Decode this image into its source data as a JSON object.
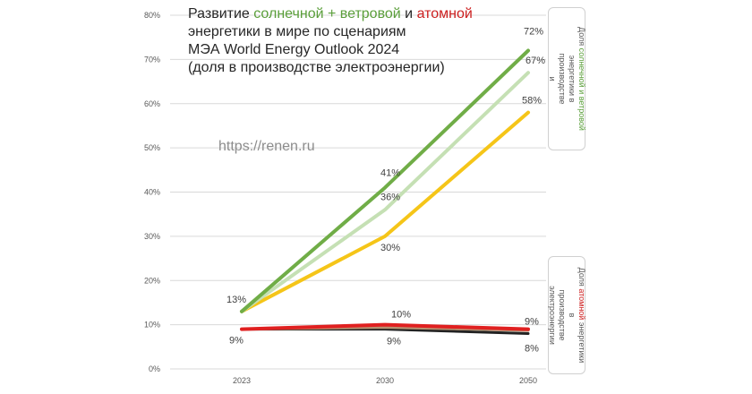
{
  "title": {
    "part1": "Развитие ",
    "green": "солнечной + ветровой",
    "part2": " и ",
    "red": "атомной",
    "line2": "энергетики в мире по сценариям",
    "line3": "МЭА World Energy Outlook 2024",
    "line4": "(доля в производстве электроэнергии)"
  },
  "watermark": "https://renen.ru",
  "legend_renewable": {
    "part1": "Доля ",
    "green": "солнечной и ветровой",
    "line2": "энергетики в",
    "line3": "производстве",
    "line4": "и"
  },
  "legend_nuclear": {
    "part1": "Доля ",
    "red": "атомной",
    "part2": " энергетики",
    "line2": "в",
    "line3": "производстве",
    "line4": "электроэнергии"
  },
  "chart_data": {
    "type": "line",
    "categories": [
      "2023",
      "2030",
      "2050"
    ],
    "ylim": [
      0,
      80
    ],
    "yticks": [
      "0%",
      "10%",
      "20%",
      "30%",
      "40%",
      "50%",
      "60%",
      "70%",
      "80%"
    ],
    "grid": true,
    "series": [
      {
        "color": "#70ad47",
        "values": [
          13,
          41,
          72
        ],
        "labels": [
          "13%",
          "41%",
          "72%"
        ]
      },
      {
        "color": "#c5e0b4",
        "values": [
          13,
          36,
          67
        ],
        "labels": [
          "",
          "36%",
          "67%"
        ]
      },
      {
        "color": "#f5c518",
        "values": [
          13,
          30,
          58
        ],
        "labels": [
          "",
          "30%",
          "58%"
        ]
      },
      {
        "color": "#e02020",
        "values": [
          9,
          10,
          9
        ],
        "labels": [
          "",
          "10%",
          "9%"
        ]
      },
      {
        "color": "#b89070",
        "values": [
          9,
          9.4,
          8.7
        ],
        "labels": [
          "",
          "",
          ""
        ]
      },
      {
        "color": "#222222",
        "values": [
          9,
          9,
          8
        ],
        "labels": [
          "9%",
          "9%",
          "8%"
        ]
      }
    ]
  }
}
